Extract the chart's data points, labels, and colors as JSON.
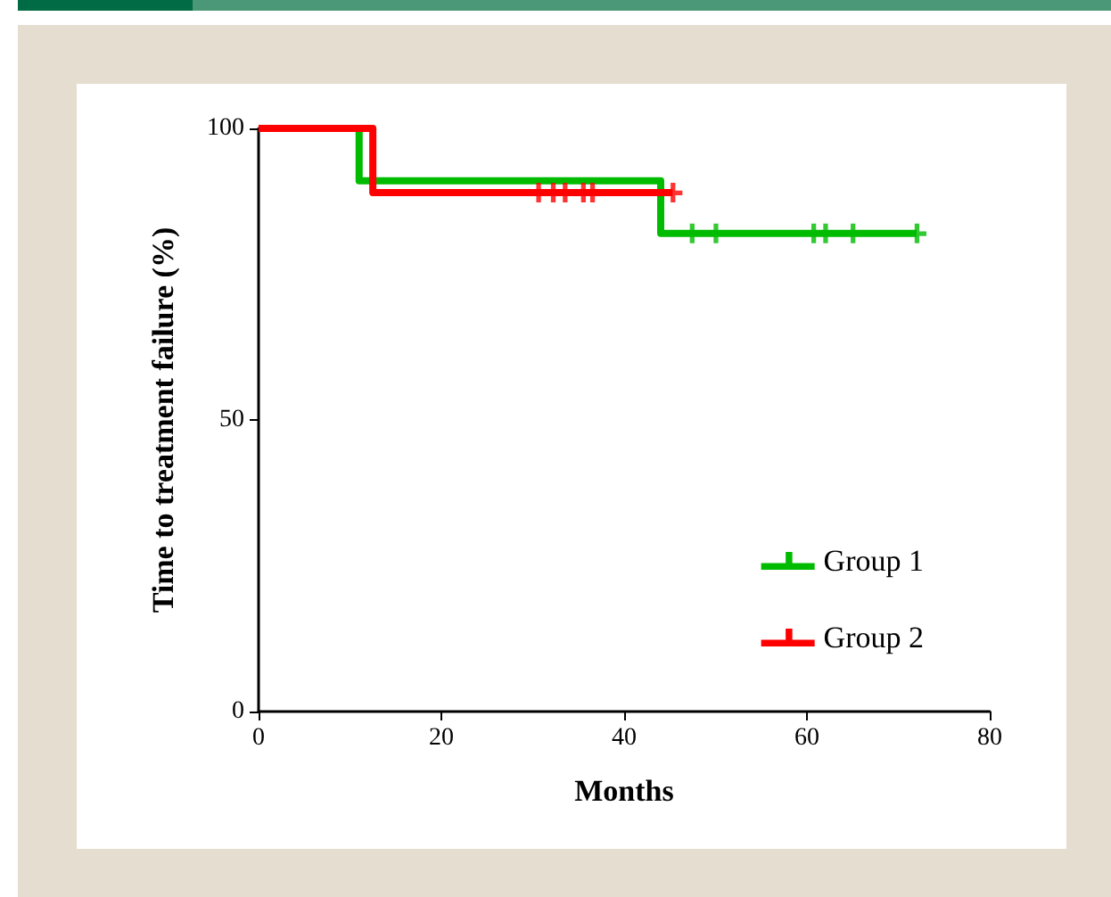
{
  "chart_data": {
    "type": "step",
    "xlabel": "Months",
    "ylabel": "Time to treatment failure (%)",
    "xlim": [
      0,
      80
    ],
    "xticks": [
      0,
      20,
      40,
      60,
      80
    ],
    "ylim": [
      0,
      100
    ],
    "yticks": [
      0,
      50,
      100
    ],
    "grid": false,
    "legend": "bottom right",
    "line_style": "solid",
    "series": [
      {
        "name": "Group 1",
        "color": "#00bb00",
        "x": [
          0,
          11,
          44,
          72
        ],
        "values": [
          100,
          91,
          82,
          82
        ]
      },
      {
        "name": "Group 2",
        "color": "#ff0000",
        "x": [
          0,
          12.5,
          45.3
        ],
        "values": [
          100,
          89,
          89
        ]
      },
      {
        "type": "scatter",
        "marker": "cross",
        "color": "#00bb00",
        "x": [
          47.4,
          50,
          60.7,
          62,
          65,
          72
        ],
        "values": [
          82,
          82,
          82,
          82,
          82,
          82
        ]
      },
      {
        "type": "scatter",
        "marker": "cross",
        "color": "#ff0000",
        "x": [
          30.6,
          32.2,
          33.5,
          35.5,
          36.5,
          45.3
        ],
        "values": [
          89,
          89,
          89,
          89,
          89,
          89
        ]
      }
    ]
  }
}
